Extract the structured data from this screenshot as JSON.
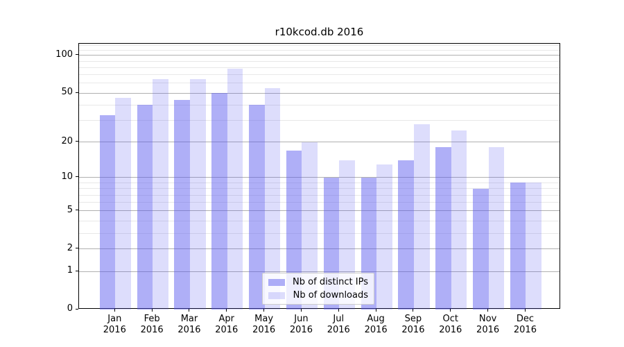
{
  "title": "r10kcod.db 2016",
  "colors": {
    "ips_bar": "rgba(85,85,238,0.47)",
    "downloads_bar": "rgba(85,85,238,0.2)",
    "major_grid": "#b0b0b0",
    "minor_grid": "#e8e8e8",
    "axis": "#000000",
    "legend_border": "#cccccc"
  },
  "legend": {
    "position": "lower center",
    "items": [
      {
        "label": "Nb of distinct IPs",
        "color_key": "ips_bar"
      },
      {
        "label": "Nb of downloads",
        "color_key": "downloads_bar"
      }
    ]
  },
  "chart_data": {
    "type": "bar",
    "title": "r10kcod.db 2016",
    "scale": "log1p",
    "grid": true,
    "categories": [
      "Jan",
      "Feb",
      "Mar",
      "Apr",
      "May",
      "Jun",
      "Jul",
      "Aug",
      "Sep",
      "Oct",
      "Nov",
      "Dec"
    ],
    "year": "2016",
    "series": [
      {
        "name": "Nb of distinct IPs",
        "values": [
          33,
          40,
          44,
          50,
          40,
          17,
          10,
          10,
          14,
          18,
          8,
          9
        ]
      },
      {
        "name": "Nb of downloads",
        "values": [
          46,
          65,
          65,
          78,
          55,
          20,
          14,
          13,
          28,
          25,
          18,
          9
        ]
      }
    ],
    "ytick_values": [
      100,
      50,
      20,
      10,
      5,
      2,
      1,
      0
    ],
    "ytick_labels": [
      "100",
      "50",
      "20",
      "10",
      "5",
      "2",
      "1",
      "0"
    ],
    "yminor_values": [
      120,
      110,
      90,
      80,
      70,
      60,
      40,
      30,
      9,
      8,
      7,
      6,
      4,
      3
    ],
    "ylim": [
      0,
      124
    ],
    "xlabel": "",
    "ylabel": ""
  }
}
